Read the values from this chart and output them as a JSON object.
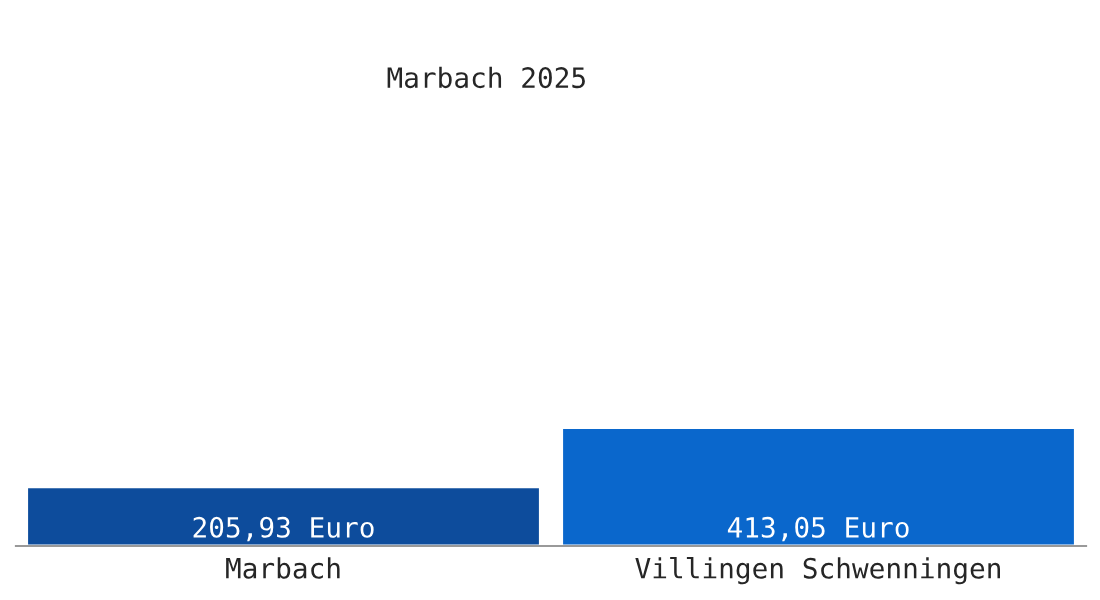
{
  "chart_data": {
    "type": "bar",
    "title": "Marbach 2025",
    "categories": [
      "Marbach",
      "Villingen Schwenningen"
    ],
    "values": [
      205.93,
      413.05
    ],
    "colors": [
      "#0d4c9c",
      "#0a67cc"
    ],
    "value_labels": [
      "205,93 Euro",
      "413,05 Euro"
    ],
    "grid": false,
    "legend": false
  }
}
